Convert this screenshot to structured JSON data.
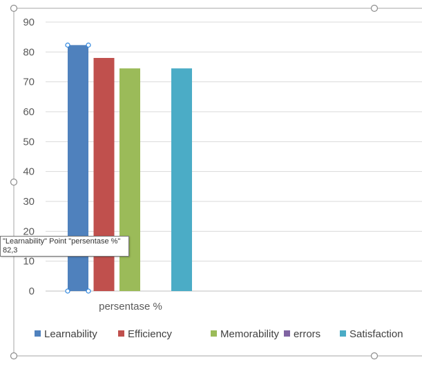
{
  "chart_data": {
    "type": "bar",
    "categories": [
      "persentase %"
    ],
    "series": [
      {
        "name": "Learnability",
        "values": [
          82.3
        ],
        "color": "#4f81bd"
      },
      {
        "name": "Efficiency",
        "values": [
          78
        ],
        "color": "#c0504d"
      },
      {
        "name": "Memorability",
        "values": [
          74.5
        ],
        "color": "#9bbb59"
      },
      {
        "name": "errors",
        "values": [
          0
        ],
        "color": "#8064a2"
      },
      {
        "name": "Satisfaction",
        "values": [
          74.5
        ],
        "color": "#4bacc6"
      }
    ],
    "ylim": [
      0,
      90
    ],
    "yticks": [
      "0",
      "10",
      "20",
      "30",
      "40",
      "50",
      "60",
      "70",
      "80",
      "90"
    ],
    "grid": true,
    "legend": "bottom",
    "selected_series": "Learnability"
  },
  "tooltip": {
    "line1": "\"Learnability\" Point \"persentase %\"",
    "line2": "82,3"
  }
}
